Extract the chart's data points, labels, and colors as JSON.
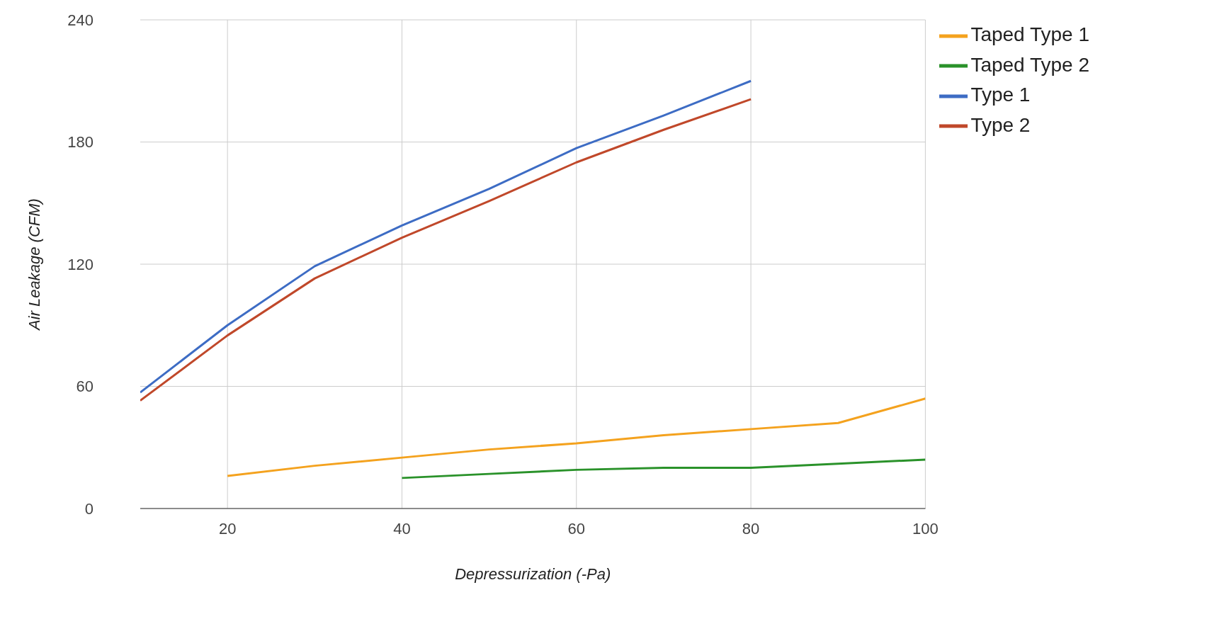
{
  "chart_data": {
    "type": "line",
    "xlabel": "Depressurization (-Pa)",
    "ylabel": "Air Leakage (CFM)",
    "xlim": [
      10,
      100
    ],
    "xticks": [
      20,
      40,
      60,
      80,
      100
    ],
    "ylim": [
      0,
      240
    ],
    "yticks": [
      0,
      60,
      120,
      180,
      240
    ],
    "grid": true,
    "legend": "top right",
    "marker": "none",
    "line_style": "solid",
    "series": [
      {
        "name": "Type 1",
        "color": "#3d6cc4",
        "x": [
          10,
          20,
          30,
          40,
          50,
          60,
          70,
          80
        ],
        "values": [
          57,
          90,
          119,
          139,
          157,
          177,
          193,
          210
        ]
      },
      {
        "name": "Type 2",
        "color": "#c0482a",
        "x": [
          10,
          20,
          30,
          40,
          50,
          60,
          70,
          80
        ],
        "values": [
          53,
          85,
          113,
          133,
          151,
          170,
          186,
          201
        ]
      },
      {
        "name": "Taped Type 1",
        "color": "#f4a21e",
        "x": [
          20,
          30,
          40,
          50,
          60,
          70,
          80,
          90,
          100
        ],
        "values": [
          16,
          21,
          25,
          29,
          32,
          36,
          39,
          42,
          54
        ]
      },
      {
        "name": "Taped Type 2",
        "color": "#2a922a",
        "x": [
          40,
          50,
          60,
          70,
          80,
          90,
          100
        ],
        "values": [
          15,
          17,
          19,
          20,
          20,
          22,
          24
        ]
      }
    ]
  }
}
